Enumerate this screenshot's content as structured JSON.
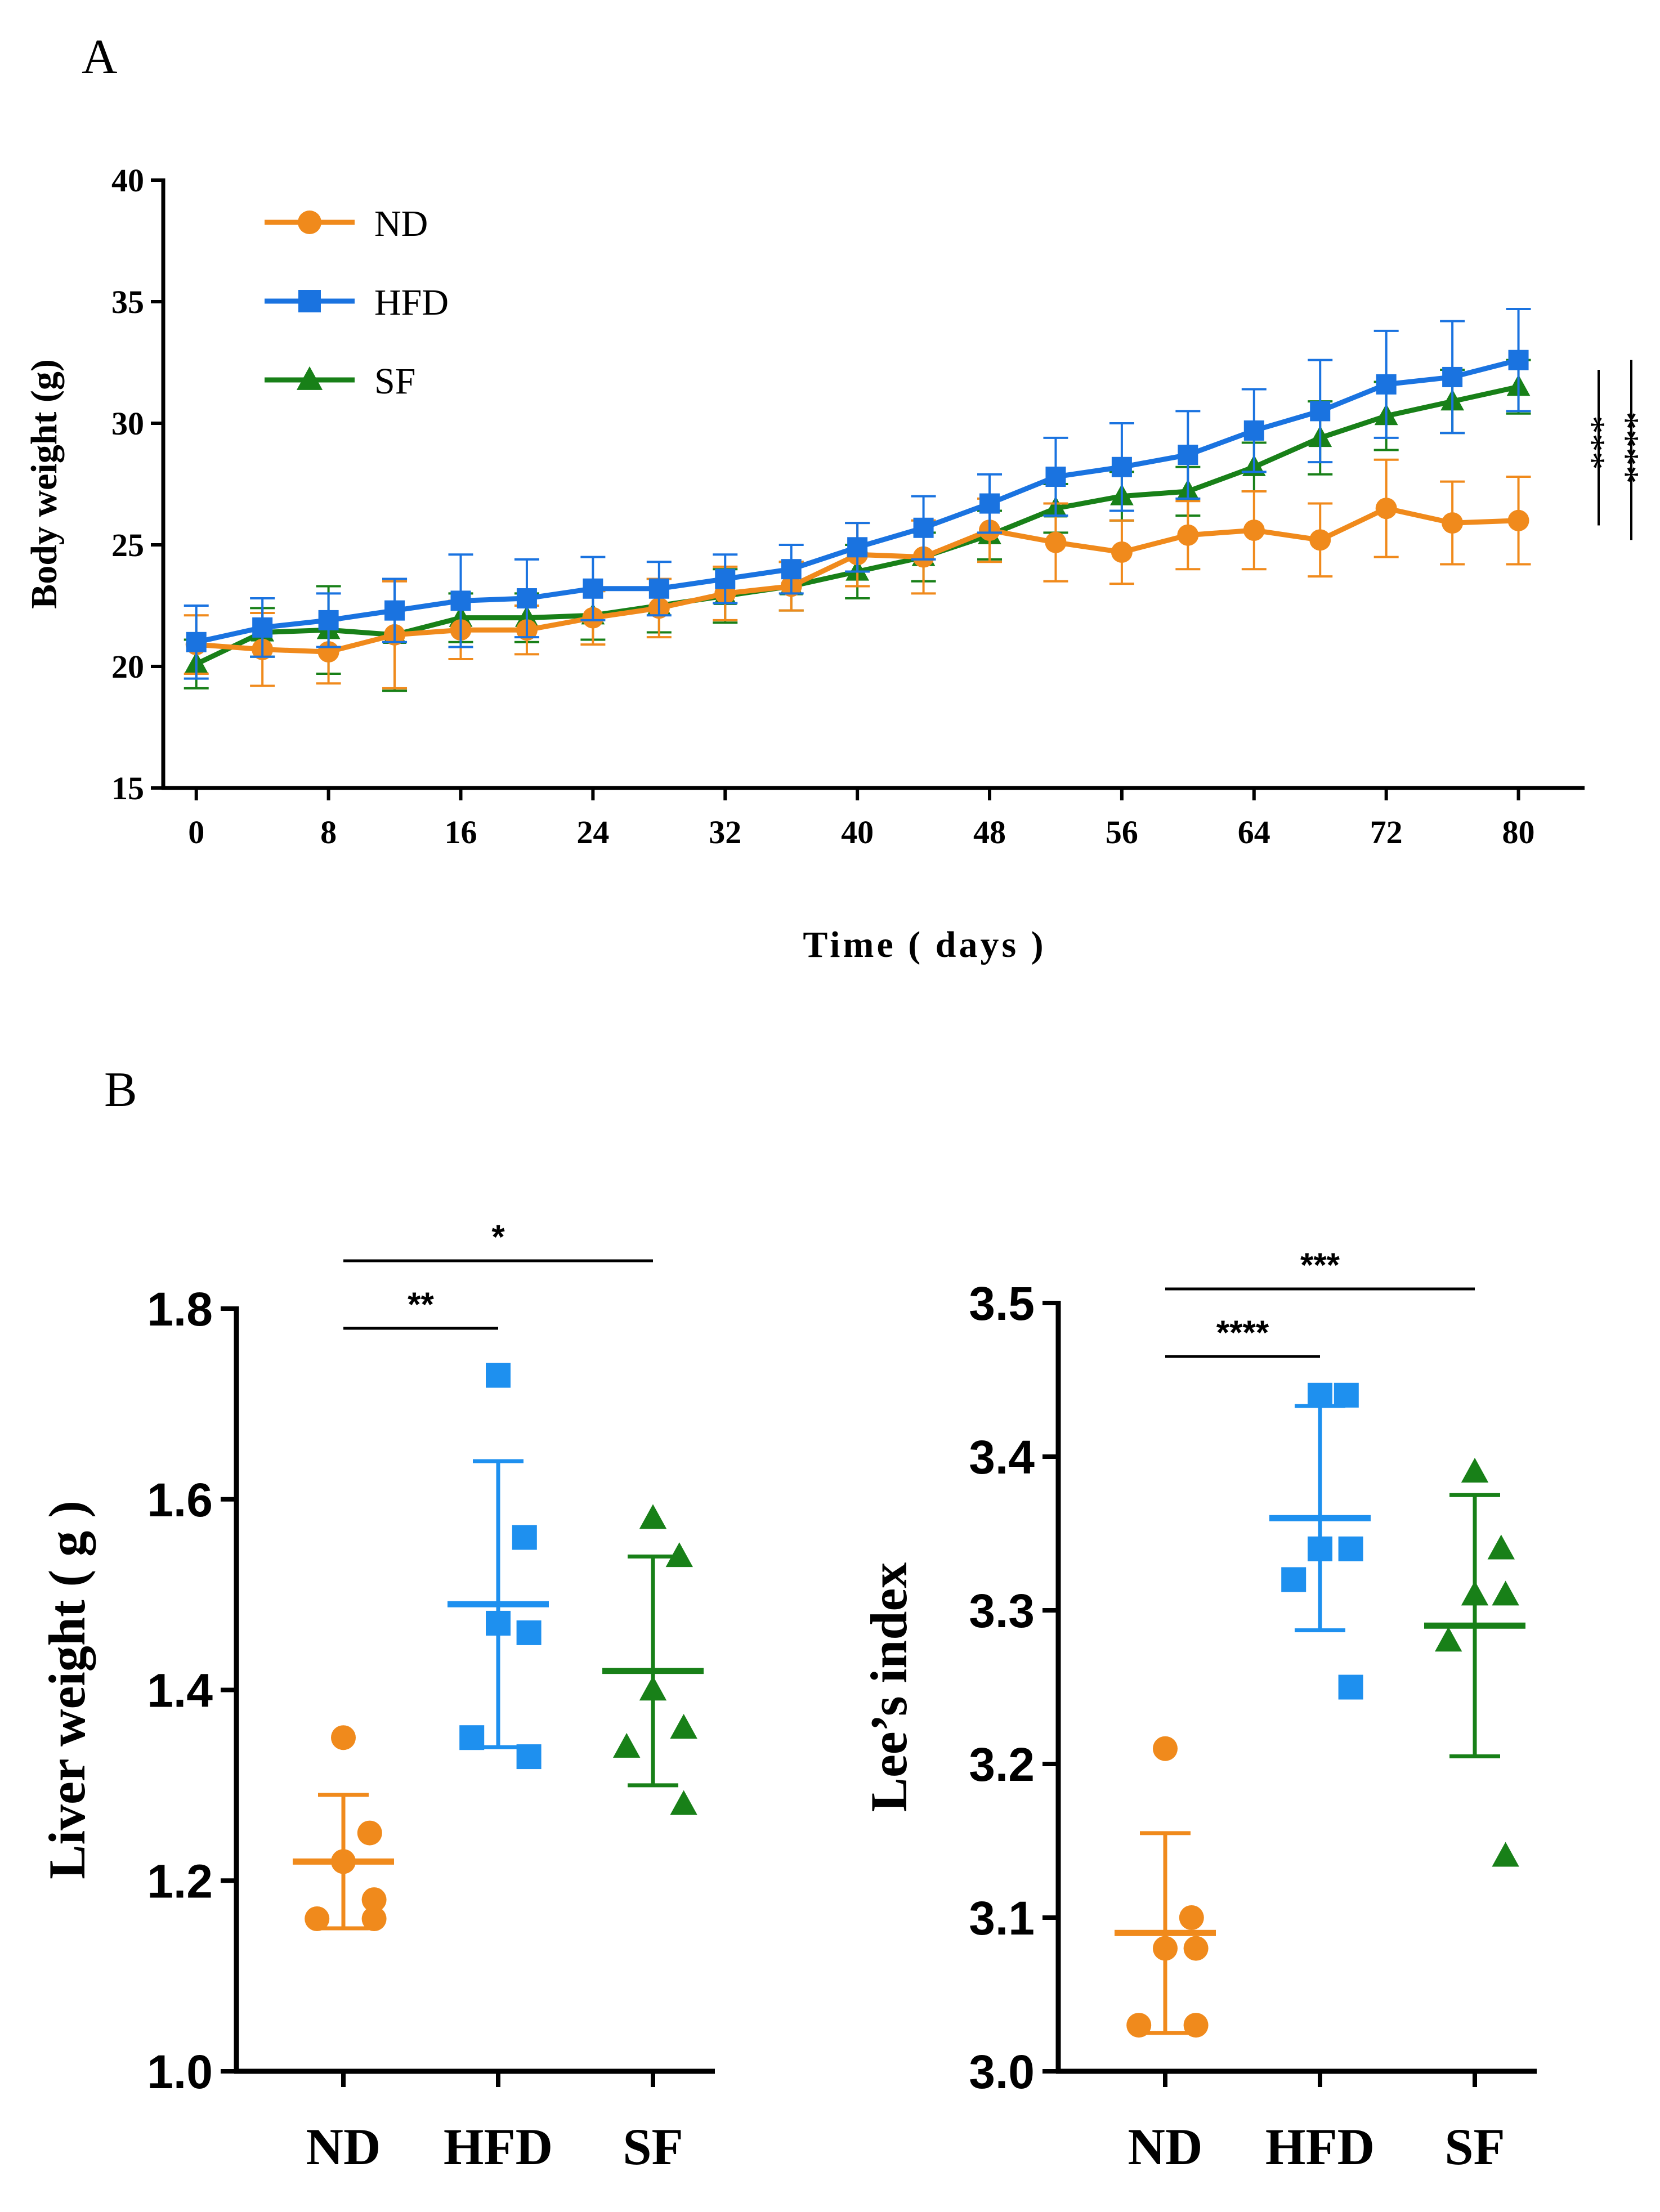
{
  "colors": {
    "ND": "#f08a1c",
    "HFD": "#1a73e0",
    "SF": "#188018",
    "HFD_dots": "#1e90ef",
    "axis": "#000000"
  },
  "panels": {
    "a": "A",
    "b": "B"
  },
  "chart_data": [
    {
      "type": "line",
      "title": "",
      "xlabel": "Time ( days )",
      "ylabel": "Body weight (g)",
      "xlim": [
        -2,
        84
      ],
      "ylim": [
        15,
        40
      ],
      "xticks": [
        0,
        8,
        16,
        24,
        32,
        40,
        48,
        56,
        64,
        72,
        80
      ],
      "yticks": [
        15,
        20,
        25,
        30,
        35,
        40
      ],
      "x": [
        0,
        4,
        8,
        12,
        16,
        20,
        24,
        28,
        32,
        36,
        40,
        44,
        48,
        52,
        56,
        60,
        64,
        68,
        72,
        76,
        80
      ],
      "series": [
        {
          "name": "ND",
          "marker": "circle",
          "values": [
            20.9,
            20.7,
            20.6,
            21.3,
            21.5,
            21.5,
            22.0,
            22.4,
            23.0,
            23.3,
            24.6,
            24.5,
            25.6,
            25.1,
            24.7,
            25.4,
            25.6,
            25.2,
            26.5,
            25.9,
            26.0
          ],
          "errors": [
            1.2,
            1.5,
            1.3,
            2.2,
            1.2,
            1.0,
            1.1,
            1.2,
            1.1,
            1.0,
            1.3,
            1.5,
            1.3,
            1.6,
            1.3,
            1.4,
            1.6,
            1.5,
            2.0,
            1.7,
            1.8
          ]
        },
        {
          "name": "HFD",
          "marker": "square",
          "values": [
            21.0,
            21.6,
            21.9,
            22.3,
            22.7,
            22.8,
            23.2,
            23.2,
            23.6,
            24.0,
            24.9,
            25.7,
            26.7,
            27.8,
            28.2,
            28.7,
            29.7,
            30.5,
            31.6,
            31.9,
            32.6
          ],
          "errors": [
            1.5,
            1.2,
            1.1,
            1.3,
            1.9,
            1.6,
            1.3,
            1.1,
            1.0,
            1.0,
            1.0,
            1.3,
            1.2,
            1.6,
            1.8,
            1.8,
            1.7,
            2.1,
            2.2,
            2.3,
            2.1
          ]
        },
        {
          "name": "SF",
          "marker": "triangle",
          "values": [
            20.1,
            21.4,
            21.5,
            21.3,
            22.0,
            22.0,
            22.1,
            22.5,
            22.9,
            23.3,
            23.9,
            24.5,
            25.4,
            26.5,
            27.0,
            27.2,
            28.2,
            29.4,
            30.3,
            30.9,
            31.5
          ],
          "errors": [
            1.0,
            1.0,
            1.8,
            2.3,
            1.0,
            1.0,
            1.0,
            1.1,
            1.1,
            1.0,
            1.1,
            1.0,
            1.0,
            1.0,
            1.0,
            1.0,
            1.0,
            1.5,
            1.4,
            1.3,
            1.1
          ]
        }
      ],
      "legend": [
        "ND",
        "HFD",
        "SF"
      ],
      "legend_position": "top-left",
      "annotations": [
        "***",
        "****"
      ]
    },
    {
      "type": "scatter",
      "title": "",
      "xlabel": "",
      "ylabel": "Liver weight ( g )",
      "ylim": [
        1.0,
        1.8
      ],
      "yticks": [
        "1.0",
        "1.2",
        "1.4",
        "1.6",
        "1.8"
      ],
      "categories": [
        "ND",
        "HFD",
        "SF"
      ],
      "points": [
        [
          1.35,
          1.25,
          1.22,
          1.18,
          1.16,
          1.16
        ],
        [
          1.73,
          1.56,
          1.47,
          1.46,
          1.35,
          1.33
        ],
        [
          1.58,
          1.54,
          1.4,
          1.36,
          1.34,
          1.28
        ]
      ],
      "means": [
        1.22,
        1.49,
        1.42
      ],
      "sd": [
        0.07,
        0.15,
        0.12
      ],
      "significance": [
        {
          "from": "ND",
          "to": "HFD",
          "label": "**"
        },
        {
          "from": "ND",
          "to": "SF",
          "label": "*"
        }
      ]
    },
    {
      "type": "scatter",
      "title": "",
      "xlabel": "",
      "ylabel": "Lee’s index",
      "ylim": [
        3.0,
        3.5
      ],
      "yticks": [
        "3.0",
        "3.1",
        "3.2",
        "3.3",
        "3.4",
        "3.5"
      ],
      "categories": [
        "ND",
        "HFD",
        "SF"
      ],
      "points": [
        [
          3.21,
          3.1,
          3.08,
          3.08,
          3.03,
          3.03
        ],
        [
          3.44,
          3.44,
          3.34,
          3.34,
          3.32,
          3.25
        ],
        [
          3.39,
          3.34,
          3.31,
          3.31,
          3.28,
          3.14
        ]
      ],
      "means": [
        3.09,
        3.36,
        3.29
      ],
      "sd": [
        0.065,
        0.073,
        0.085
      ],
      "significance": [
        {
          "from": "ND",
          "to": "HFD",
          "label": "****"
        },
        {
          "from": "ND",
          "to": "SF",
          "label": "***"
        }
      ]
    }
  ]
}
